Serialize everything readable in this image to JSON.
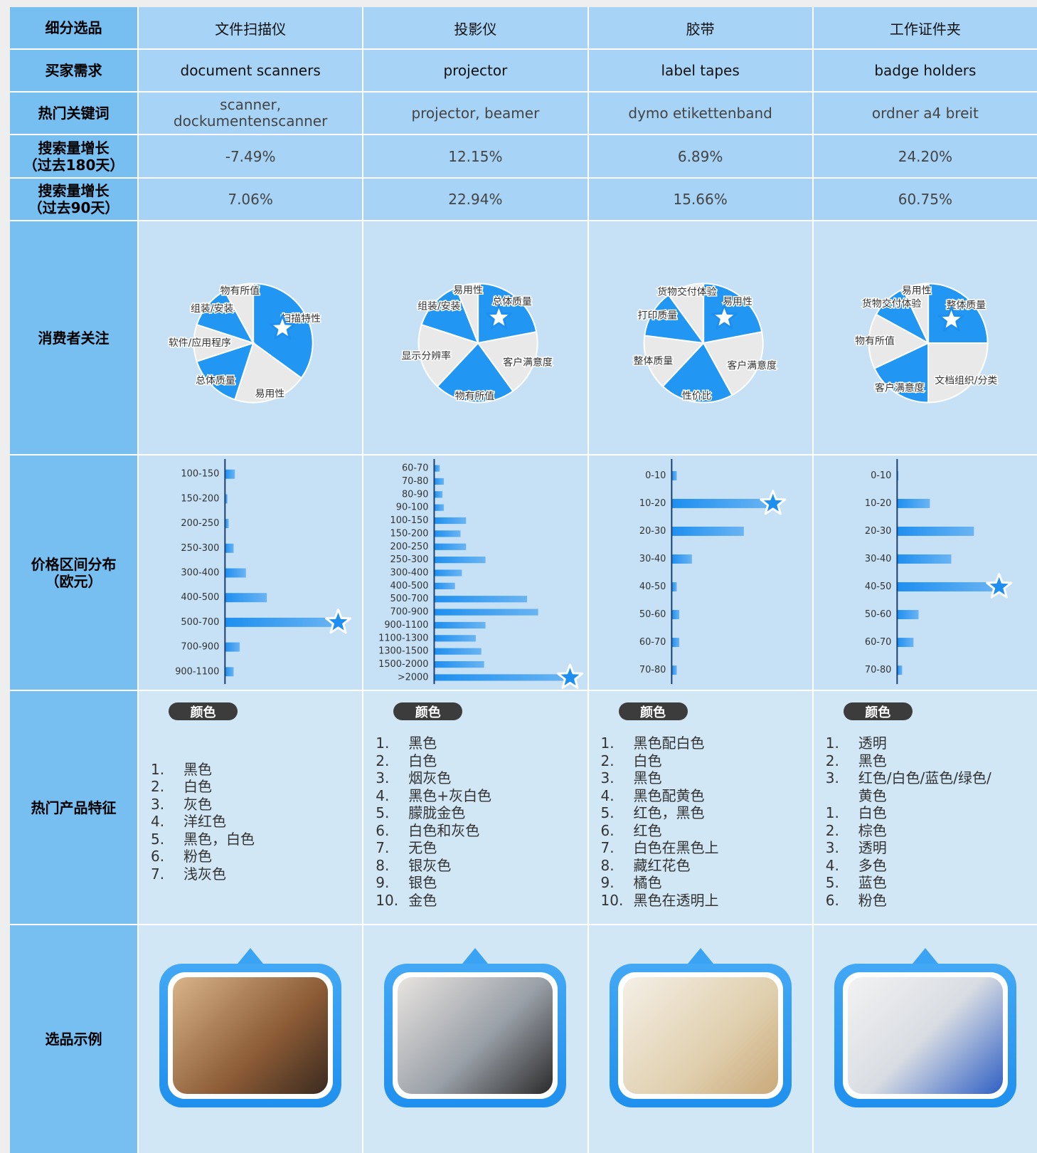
{
  "table": {
    "row_labels": [
      [
        "细分选品"
      ],
      [
        "买家需求"
      ],
      [
        "热门关键词"
      ],
      [
        "搜索量增长",
        "（过去180天）"
      ],
      [
        "搜索量增长",
        "（过去90天）"
      ],
      [
        "消费者关注"
      ],
      [
        "价格区间分布",
        "（欧元）"
      ],
      [
        "热门产品特征"
      ],
      [
        "选品示例"
      ]
    ],
    "columns": [
      {
        "segment": "文件扫描仪",
        "demand": "document scanners",
        "keywords": "scanner, dockumentenscanner",
        "growth_180d": "-7.49%",
        "growth_90d": "7.06%",
        "feature_tag": "颜色",
        "features": [
          [
            "1.",
            "黑色"
          ],
          [
            "2.",
            "白色"
          ],
          [
            "3.",
            "灰色"
          ],
          [
            "4.",
            "洋红色"
          ],
          [
            "5.",
            "黑色，白色"
          ],
          [
            "6.",
            "粉色"
          ],
          [
            "7.",
            "浅灰色"
          ]
        ]
      },
      {
        "segment": "投影仪",
        "demand": "projector",
        "keywords": "projector, beamer",
        "growth_180d": "12.15%",
        "growth_90d": "22.94%",
        "feature_tag": "颜色",
        "features": [
          [
            "1.",
            "黑色"
          ],
          [
            "2.",
            "白色"
          ],
          [
            "3.",
            "烟灰色"
          ],
          [
            "4.",
            "黑色+灰白色"
          ],
          [
            "5.",
            "朦胧金色"
          ],
          [
            "6.",
            "白色和灰色"
          ],
          [
            "7.",
            "无色"
          ],
          [
            "8.",
            "银灰色"
          ],
          [
            "9.",
            "银色"
          ],
          [
            "10.",
            "金色"
          ]
        ]
      },
      {
        "segment": "胶带",
        "demand": "label tapes",
        "keywords": "dymo etikettenband",
        "growth_180d": "6.89%",
        "growth_90d": "15.66%",
        "feature_tag": "颜色",
        "features": [
          [
            "1.",
            "黑色配白色"
          ],
          [
            "2.",
            "白色"
          ],
          [
            "3.",
            "黑色"
          ],
          [
            "4.",
            "黑色配黄色"
          ],
          [
            "5.",
            "红色，黑色"
          ],
          [
            "6.",
            "红色"
          ],
          [
            "7.",
            "白色在黑色上"
          ],
          [
            "8.",
            "藏红花色"
          ],
          [
            "9.",
            "橘色"
          ],
          [
            "10.",
            "黑色在透明上"
          ]
        ]
      },
      {
        "segment": "工作证件夹",
        "demand": "badge holders",
        "keywords": "ordner a4 breit",
        "growth_180d": "24.20%",
        "growth_90d": "60.75%",
        "feature_tag": "颜色",
        "features": [
          [
            "1.",
            "透明"
          ],
          [
            "2.",
            "黑色"
          ],
          [
            "3.",
            "红色/白色/蓝色/绿色/黄色"
          ],
          [
            "1.",
            "白色"
          ],
          [
            "2.",
            "棕色"
          ],
          [
            "3.",
            "透明"
          ],
          [
            "4.",
            "多色"
          ],
          [
            "5.",
            "蓝色"
          ],
          [
            "6.",
            "粉色"
          ]
        ]
      }
    ]
  },
  "chart_data": [
    {
      "type": "pie",
      "categories": [
        "扫描特性",
        "易用性",
        "总体质量",
        "软件/应用程序",
        "组装/安装",
        "物有所值"
      ],
      "values": [
        35,
        20,
        15,
        10,
        12,
        8
      ],
      "colors": [
        "#2196f3",
        "#e9e9e9",
        "#2196f3",
        "#e9e9e9",
        "#2196f3",
        "#e9e9e9"
      ],
      "highlight": 0
    },
    {
      "type": "bar",
      "categories": [
        "100-150",
        "150-200",
        "200-250",
        "250-300",
        "300-400",
        "400-500",
        "500-700",
        "700-900",
        "900-1100"
      ],
      "values": [
        8,
        2,
        3,
        7,
        17,
        34,
        92,
        12,
        7
      ],
      "xlim": [
        0,
        100
      ],
      "color": "#1e8ff0",
      "highlight": 6
    },
    {
      "type": "pie",
      "categories": [
        "总体质量",
        "客户满意度",
        "物有所值",
        "显示分辨率",
        "组装/安装",
        "易用性"
      ],
      "values": [
        22,
        18,
        22,
        18,
        14,
        6
      ],
      "colors": [
        "#2196f3",
        "#e9e9e9",
        "#2196f3",
        "#e9e9e9",
        "#2196f3",
        "#e9e9e9"
      ],
      "highlight": 0
    },
    {
      "type": "bar",
      "categories": [
        "60-70",
        "70-80",
        "80-90",
        "90-100",
        "100-150",
        "150-200",
        "200-250",
        "250-300",
        "300-400",
        "400-500",
        "500-700",
        "700-900",
        "900-1100",
        "1100-1300",
        "1300-1500",
        "1500-2000",
        ">2000"
      ],
      "values": [
        4,
        7,
        6,
        7,
        23,
        19,
        23,
        37,
        20,
        15,
        67,
        75,
        37,
        30,
        34,
        36,
        98
      ],
      "xlim": [
        0,
        100
      ],
      "color": "#1e8ff0",
      "highlight": 16
    },
    {
      "type": "pie",
      "categories": [
        "易用性",
        "客户满意度",
        "性价比",
        "整体质量",
        "打印质量",
        "货物交付体验"
      ],
      "values": [
        22,
        20,
        20,
        15,
        13,
        10
      ],
      "colors": [
        "#2196f3",
        "#e9e9e9",
        "#2196f3",
        "#e9e9e9",
        "#2196f3",
        "#e9e9e9"
      ],
      "highlight": 0
    },
    {
      "type": "bar",
      "categories": [
        "0-10",
        "10-20",
        "20-30",
        "30-40",
        "40-50",
        "50-60",
        "60-70",
        "70-80"
      ],
      "values": [
        4,
        80,
        57,
        16,
        4,
        6,
        6,
        4
      ],
      "xlim": [
        0,
        100
      ],
      "color": "#1e8ff0",
      "highlight": 1
    },
    {
      "type": "pie",
      "categories": [
        "整体质量",
        "文档组织/分类",
        "客户满意度",
        "物有所值",
        "货物交付体验",
        "易用性"
      ],
      "values": [
        25,
        25,
        18,
        15,
        10,
        7
      ],
      "colors": [
        "#2196f3",
        "#e9e9e9",
        "#2196f3",
        "#e9e9e9",
        "#2196f3",
        "#e9e9e9"
      ],
      "highlight": 0
    },
    {
      "type": "bar",
      "categories": [
        "0-10",
        "10-20",
        "20-30",
        "30-40",
        "40-50",
        "50-60",
        "60-70",
        "70-80"
      ],
      "values": [
        1,
        26,
        61,
        43,
        81,
        17,
        13,
        4
      ],
      "xlim": [
        0,
        100
      ],
      "color": "#1e8ff0",
      "highlight": 4
    }
  ]
}
